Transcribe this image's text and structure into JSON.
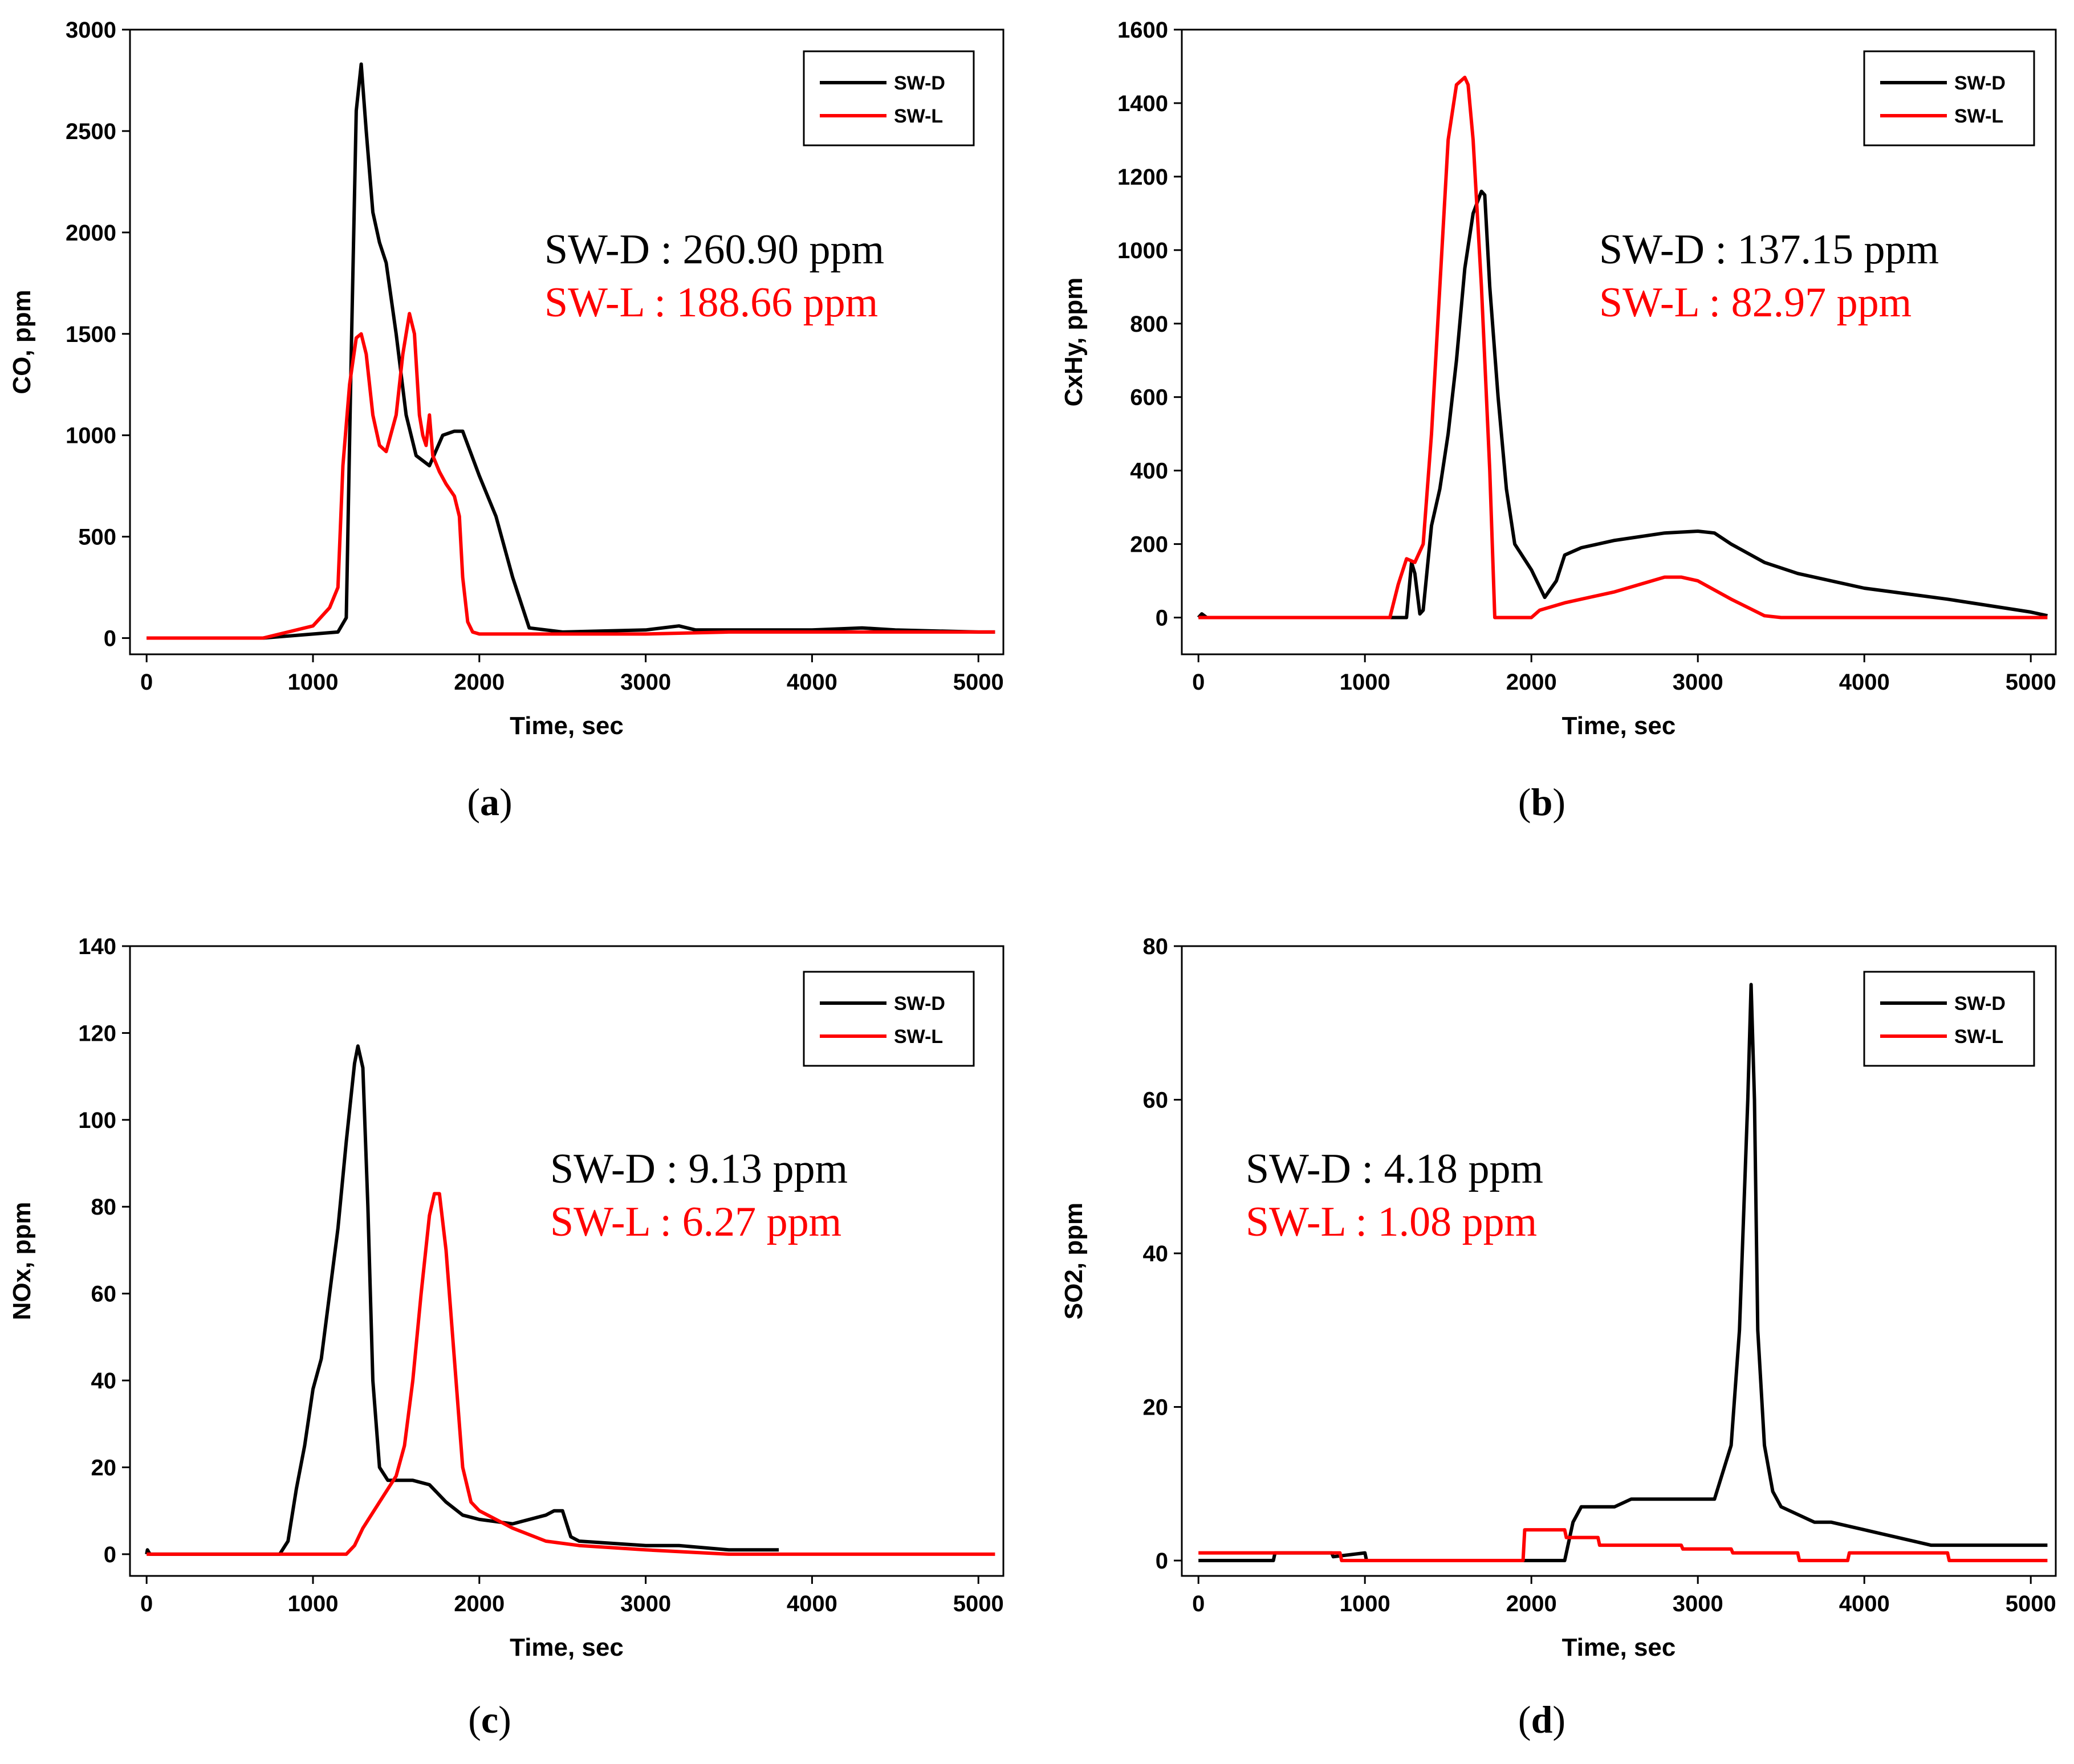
{
  "colors": {
    "SW-D": "#000000",
    "SW-L": "#ff0000"
  },
  "chart_data": [
    {
      "type": "line",
      "caption": "a",
      "xlabel": "Time, sec",
      "ylabel": "CO, ppm",
      "xlim": [
        -100,
        5150
      ],
      "ylim": [
        -80,
        3000
      ],
      "xticks": [
        0,
        1000,
        2000,
        3000,
        4000,
        5000
      ],
      "yticks": [
        0,
        500,
        1000,
        1500,
        2000,
        2500,
        3000
      ],
      "legend": [
        "SW-D",
        "SW-L"
      ],
      "annotations": [
        {
          "series": "SW-D",
          "label": "SW-D : 260.90 ppm"
        },
        {
          "series": "SW-L",
          "label": "SW-L : 188.66 ppm"
        }
      ],
      "series": [
        {
          "name": "SW-D",
          "x": [
            0,
            700,
            1150,
            1200,
            1230,
            1260,
            1290,
            1320,
            1360,
            1400,
            1440,
            1500,
            1560,
            1620,
            1700,
            1780,
            1850,
            1900,
            2000,
            2100,
            2200,
            2300,
            2500,
            3000,
            3200,
            3300,
            3500,
            4000,
            4300,
            4500,
            5000,
            5100
          ],
          "y": [
            0,
            0,
            30,
            100,
            1400,
            2600,
            2830,
            2500,
            2100,
            1950,
            1850,
            1500,
            1100,
            900,
            850,
            1000,
            1020,
            1020,
            800,
            600,
            300,
            50,
            30,
            40,
            60,
            40,
            40,
            40,
            50,
            40,
            30,
            30
          ]
        },
        {
          "name": "SW-L",
          "x": [
            0,
            700,
            1000,
            1100,
            1150,
            1180,
            1220,
            1260,
            1290,
            1320,
            1360,
            1400,
            1440,
            1500,
            1540,
            1580,
            1610,
            1640,
            1660,
            1680,
            1700,
            1720,
            1760,
            1800,
            1850,
            1880,
            1900,
            1930,
            1960,
            2000,
            2500,
            3000,
            3500,
            4000,
            4500,
            5100
          ],
          "y": [
            0,
            0,
            60,
            150,
            250,
            850,
            1250,
            1480,
            1500,
            1400,
            1100,
            950,
            920,
            1100,
            1400,
            1600,
            1500,
            1100,
            1000,
            950,
            1100,
            900,
            820,
            760,
            700,
            600,
            300,
            80,
            30,
            20,
            20,
            20,
            30,
            30,
            30,
            30
          ]
        }
      ]
    },
    {
      "type": "line",
      "caption": "b",
      "xlabel": "Time, sec",
      "ylabel": "CxHy, ppm",
      "xlim": [
        -100,
        5150
      ],
      "ylim": [
        -100,
        1600
      ],
      "xticks": [
        0,
        1000,
        2000,
        3000,
        4000,
        5000
      ],
      "yticks": [
        0,
        200,
        400,
        600,
        800,
        1000,
        1200,
        1400,
        1600
      ],
      "legend": [
        "SW-D",
        "SW-L"
      ],
      "annotations": [
        {
          "series": "SW-D",
          "label": "SW-D : 137.15 ppm"
        },
        {
          "series": "SW-L",
          "label": "SW-L : 82.97 ppm"
        }
      ],
      "series": [
        {
          "name": "SW-D",
          "x": [
            0,
            20,
            50,
            1250,
            1280,
            1300,
            1330,
            1350,
            1400,
            1450,
            1500,
            1550,
            1600,
            1650,
            1700,
            1720,
            1750,
            1800,
            1850,
            1900,
            2000,
            2080,
            2150,
            2200,
            2300,
            2500,
            2800,
            3000,
            3100,
            3200,
            3400,
            3600,
            4000,
            4500,
            5000,
            5100
          ],
          "y": [
            0,
            10,
            0,
            0,
            150,
            120,
            10,
            20,
            250,
            350,
            500,
            700,
            950,
            1100,
            1160,
            1150,
            900,
            600,
            350,
            200,
            130,
            55,
            100,
            170,
            190,
            210,
            230,
            235,
            230,
            200,
            150,
            120,
            80,
            50,
            15,
            5
          ]
        },
        {
          "name": "SW-L",
          "x": [
            0,
            1150,
            1200,
            1250,
            1300,
            1350,
            1400,
            1450,
            1500,
            1550,
            1600,
            1620,
            1650,
            1700,
            1750,
            1780,
            1800,
            2000,
            2050,
            2200,
            2500,
            2800,
            2900,
            3000,
            3200,
            3400,
            3500,
            5100
          ],
          "y": [
            0,
            0,
            90,
            160,
            150,
            200,
            500,
            900,
            1300,
            1450,
            1470,
            1450,
            1300,
            900,
            400,
            0,
            0,
            0,
            20,
            40,
            70,
            110,
            110,
            100,
            50,
            5,
            0,
            0
          ]
        }
      ]
    },
    {
      "type": "line",
      "caption": "c",
      "xlabel": "Time, sec",
      "ylabel": "NOx, ppm",
      "xlim": [
        -100,
        5150
      ],
      "ylim": [
        -5,
        140
      ],
      "xticks": [
        0,
        1000,
        2000,
        3000,
        4000,
        5000
      ],
      "yticks": [
        0,
        20,
        40,
        60,
        80,
        100,
        120,
        140
      ],
      "legend": [
        "SW-D",
        "SW-L"
      ],
      "annotations": [
        {
          "series": "SW-D",
          "label": "SW-D : 9.13 ppm"
        },
        {
          "series": "SW-L",
          "label": "SW-L : 6.27 ppm"
        }
      ],
      "series": [
        {
          "name": "SW-D",
          "x": [
            0,
            5,
            20,
            800,
            850,
            900,
            950,
            1000,
            1050,
            1100,
            1150,
            1200,
            1250,
            1270,
            1300,
            1330,
            1360,
            1400,
            1450,
            1500,
            1600,
            1700,
            1800,
            1900,
            2000,
            2200,
            2400,
            2450,
            2500,
            2550,
            2600,
            3000,
            3200,
            3500,
            3800
          ],
          "y": [
            0,
            1,
            0,
            0,
            3,
            15,
            25,
            38,
            45,
            60,
            75,
            95,
            113,
            117,
            112,
            80,
            40,
            20,
            17,
            17,
            17,
            16,
            12,
            9,
            8,
            7,
            9,
            10,
            10,
            4,
            3,
            2,
            2,
            1,
            1
          ]
        },
        {
          "name": "SW-L",
          "x": [
            0,
            1200,
            1250,
            1300,
            1400,
            1500,
            1550,
            1600,
            1650,
            1700,
            1730,
            1760,
            1800,
            1850,
            1900,
            1950,
            2000,
            2100,
            2200,
            2400,
            2600,
            3000,
            3500,
            4000,
            5100
          ],
          "y": [
            0,
            0,
            2,
            6,
            12,
            18,
            25,
            40,
            60,
            78,
            83,
            83,
            70,
            45,
            20,
            12,
            10,
            8,
            6,
            3,
            2,
            1,
            0,
            0,
            0
          ]
        }
      ]
    },
    {
      "type": "line",
      "caption": "d",
      "xlabel": "Time, sec",
      "ylabel": "SO2, ppm",
      "xlim": [
        -100,
        5150
      ],
      "ylim": [
        -2,
        80
      ],
      "xticks": [
        0,
        1000,
        2000,
        3000,
        4000,
        5000
      ],
      "yticks": [
        0,
        20,
        40,
        60,
        80
      ],
      "legend": [
        "SW-D",
        "SW-L"
      ],
      "annotations": [
        {
          "series": "SW-D",
          "label": "SW-D : 4.18 ppm"
        },
        {
          "series": "SW-L",
          "label": "SW-L : 1.08 ppm"
        }
      ],
      "series": [
        {
          "name": "SW-D",
          "x": [
            0,
            450,
            460,
            800,
            810,
            1000,
            1010,
            2200,
            2250,
            2300,
            2500,
            2600,
            2900,
            3000,
            3100,
            3200,
            3250,
            3300,
            3320,
            3340,
            3360,
            3400,
            3450,
            3500,
            3600,
            3700,
            3800,
            4000,
            4200,
            4400,
            4800,
            5100
          ],
          "y": [
            0,
            0,
            1,
            1,
            0.5,
            1,
            0,
            0,
            5,
            7,
            7,
            8,
            8,
            8,
            8,
            15,
            30,
            60,
            75,
            60,
            30,
            15,
            9,
            7,
            6,
            5,
            5,
            4,
            3,
            2,
            2,
            2
          ]
        },
        {
          "name": "SW-L",
          "x": [
            0,
            850,
            860,
            1950,
            1960,
            2200,
            2210,
            2400,
            2410,
            2900,
            2910,
            3200,
            3210,
            3600,
            3610,
            3900,
            3910,
            4500,
            4510,
            5100
          ],
          "y": [
            1,
            1,
            0,
            0,
            4,
            4,
            3,
            3,
            2,
            2,
            1.5,
            1.5,
            1,
            1,
            0,
            0,
            1,
            1,
            0,
            0
          ]
        }
      ]
    }
  ]
}
